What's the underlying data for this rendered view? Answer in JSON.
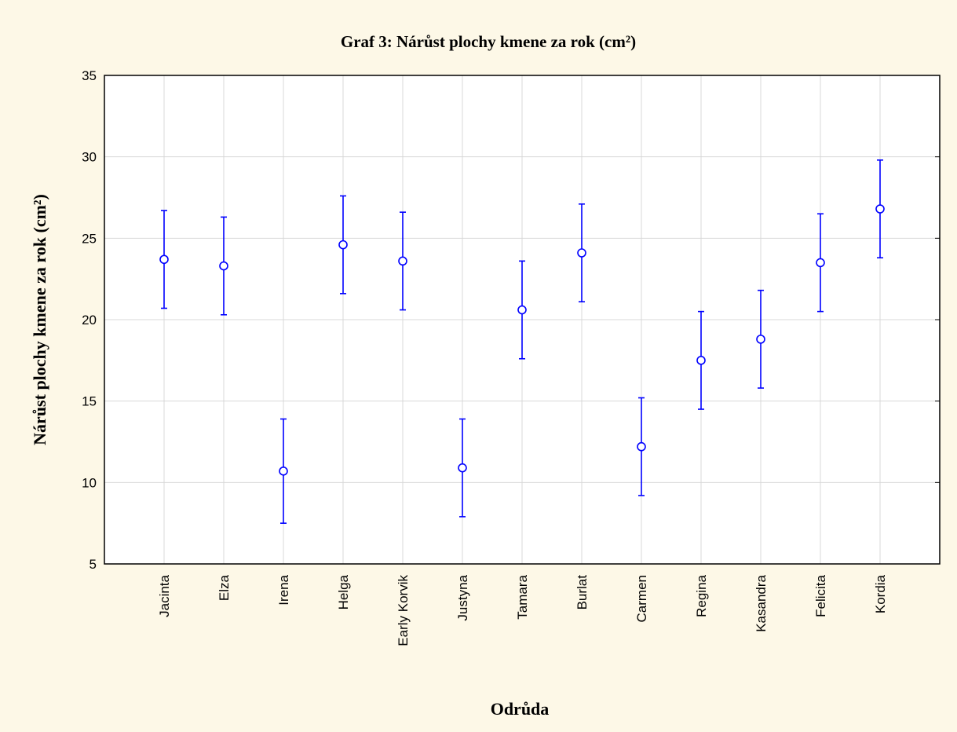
{
  "chart_data": {
    "type": "errorbar",
    "title": "Graf 3: Nárůst plochy kmene za rok (cm²)",
    "x_label": "Odrůda",
    "y_label": "Nárůst plochy kmene za rok (cm²)",
    "categories": [
      "Jacinta",
      "Elza",
      "Irena",
      "Helga",
      "Early Korvik",
      "Justyna",
      "Tamara",
      "Burlat",
      "Carmen",
      "Regina",
      "Kasandra",
      "Felicita",
      "Kordia"
    ],
    "values": [
      23.7,
      23.3,
      10.7,
      24.6,
      23.6,
      10.9,
      20.6,
      24.1,
      12.2,
      17.5,
      18.8,
      23.5,
      26.8
    ],
    "errors": [
      3.0,
      3.0,
      3.2,
      3.0,
      3.0,
      3.0,
      3.0,
      3.0,
      3.0,
      3.0,
      3.0,
      3.0,
      3.0
    ],
    "color": "#0000ff",
    "ylim": [
      5,
      35
    ],
    "yticks": [
      5,
      10,
      15,
      20,
      25,
      30,
      35
    ],
    "grid": true
  }
}
